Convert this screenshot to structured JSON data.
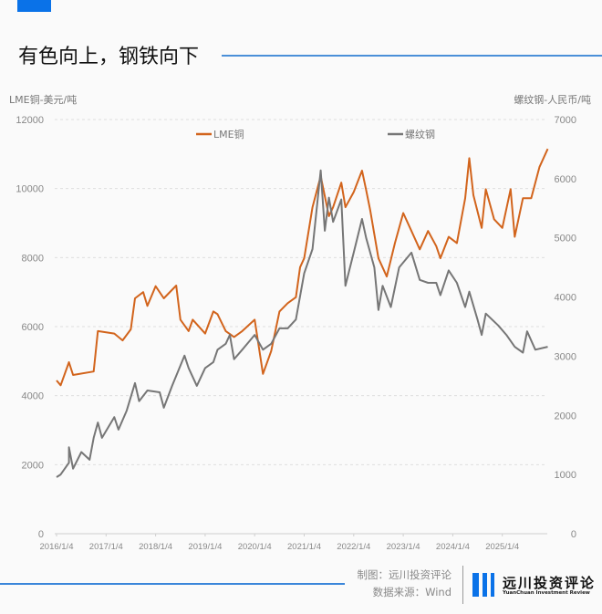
{
  "header": {
    "title": "有色向上，钢铁向下"
  },
  "colors": {
    "accent": "#0a72e8",
    "copper": "#d2641c",
    "rebar": "#767676"
  },
  "footer": {
    "credit": "制图：远川投资评论",
    "source": "数据来源：Wind"
  },
  "logo": {
    "cn": "远川投资评论",
    "en": "YuanChuan Investment Review"
  },
  "chart_data": {
    "type": "line",
    "title": "有色向上，钢铁向下",
    "ylabel_left": "LME铜-美元/吨",
    "ylabel_right": "螺纹钢-人民币/吨",
    "ylim_left": [
      0,
      12000
    ],
    "ylim_right": [
      0,
      7000
    ],
    "yticks_left": [
      "0",
      "2000",
      "4000",
      "6000",
      "8000",
      "10000",
      "12000"
    ],
    "yticks_right": [
      "0",
      "1000",
      "2000",
      "3000",
      "4000",
      "5000",
      "6000",
      "7000"
    ],
    "xticks": [
      "2016/1/4",
      "2017/1/4",
      "2018/1/4",
      "2019/1/4",
      "2020/1/4",
      "2021/1/4",
      "2022/1/4",
      "2023/1/4",
      "2024/1/4",
      "2025/1/4"
    ],
    "grid": true,
    "legend_position": "top",
    "series": [
      {
        "name": "LME铜",
        "axis": "left",
        "color": "#d2641c",
        "x": [
          "2016-01",
          "2016-02",
          "2016-04",
          "2016-05",
          "2016-10",
          "2016-11",
          "2017-03",
          "2017-05",
          "2017-07",
          "2017-08",
          "2017-10",
          "2017-11",
          "2018-01",
          "2018-03",
          "2018-06",
          "2018-07",
          "2018-09",
          "2018-10",
          "2019-01",
          "2019-03",
          "2019-04",
          "2019-06",
          "2019-08",
          "2019-10",
          "2020-01",
          "2020-03",
          "2020-05",
          "2020-07",
          "2020-09",
          "2020-11",
          "2020-12",
          "2021-01",
          "2021-03",
          "2021-05",
          "2021-07",
          "2021-08",
          "2021-10",
          "2021-11",
          "2022-01",
          "2022-03",
          "2022-04",
          "2022-05",
          "2022-07",
          "2022-09",
          "2022-11",
          "2023-01",
          "2023-03",
          "2023-05",
          "2023-07",
          "2023-09",
          "2023-10",
          "2023-12",
          "2024-02",
          "2024-04",
          "2024-05",
          "2024-06",
          "2024-08",
          "2024-09",
          "2024-11",
          "2025-01",
          "2025-03",
          "2025-04",
          "2025-06",
          "2025-08",
          "2025-10",
          "2025-12"
        ],
        "y": [
          4440,
          4300,
          4970,
          4600,
          4700,
          5870,
          5800,
          5600,
          5920,
          6820,
          7000,
          6600,
          7170,
          6820,
          7190,
          6200,
          5870,
          6200,
          5800,
          6440,
          6360,
          5870,
          5700,
          5870,
          6200,
          4630,
          5290,
          6440,
          6680,
          6850,
          7720,
          7980,
          9460,
          10360,
          9200,
          9460,
          10170,
          9460,
          9900,
          10520,
          9960,
          9370,
          7980,
          7450,
          8420,
          9290,
          8770,
          8240,
          8770,
          8330,
          7980,
          8600,
          8420,
          9720,
          10880,
          9810,
          8860,
          9980,
          9110,
          8860,
          9980,
          8600,
          9720,
          9720,
          10620,
          11150
        ]
      },
      {
        "name": "螺纹钢",
        "axis": "right",
        "color": "#767676",
        "x": [
          "2016-01",
          "2016-02",
          "2016-04",
          "2016-04",
          "2016-05",
          "2016-07",
          "2016-09",
          "2016-10",
          "2016-11",
          "2016-12",
          "2017-03",
          "2017-04",
          "2017-06",
          "2017-08",
          "2017-09",
          "2017-11",
          "2018-02",
          "2018-03",
          "2018-05",
          "2018-08",
          "2018-09",
          "2018-11",
          "2019-01",
          "2019-03",
          "2019-04",
          "2019-06",
          "2019-07",
          "2019-08",
          "2019-10",
          "2020-01",
          "2020-03",
          "2020-05",
          "2020-07",
          "2020-09",
          "2020-11",
          "2021-01",
          "2021-03",
          "2021-05",
          "2021-06",
          "2021-07",
          "2021-08",
          "2021-10",
          "2021-11",
          "2022-01",
          "2022-03",
          "2022-04",
          "2022-06",
          "2022-07",
          "2022-08",
          "2022-10",
          "2022-12",
          "2023-03",
          "2023-05",
          "2023-07",
          "2023-09",
          "2023-10",
          "2023-12",
          "2024-02",
          "2024-04",
          "2024-05",
          "2024-07",
          "2024-08",
          "2024-09",
          "2024-12",
          "2025-02",
          "2025-04",
          "2025-06",
          "2025-07",
          "2025-09",
          "2025-12"
        ],
        "y": [
          956,
          1000,
          1200,
          1460,
          1100,
          1380,
          1250,
          1620,
          1880,
          1620,
          1970,
          1760,
          2080,
          2545,
          2240,
          2420,
          2390,
          2130,
          2500,
          3010,
          2800,
          2500,
          2800,
          2900,
          3110,
          3210,
          3360,
          2950,
          3110,
          3360,
          3110,
          3210,
          3470,
          3470,
          3620,
          4400,
          4810,
          6140,
          5120,
          5680,
          5270,
          5650,
          4190,
          4750,
          5320,
          5000,
          4500,
          3780,
          4190,
          3830,
          4500,
          4750,
          4290,
          4240,
          4240,
          4030,
          4450,
          4240,
          3830,
          4090,
          3620,
          3360,
          3720,
          3520,
          3360,
          3160,
          3060,
          3420,
          3110,
          3160
        ]
      }
    ]
  }
}
